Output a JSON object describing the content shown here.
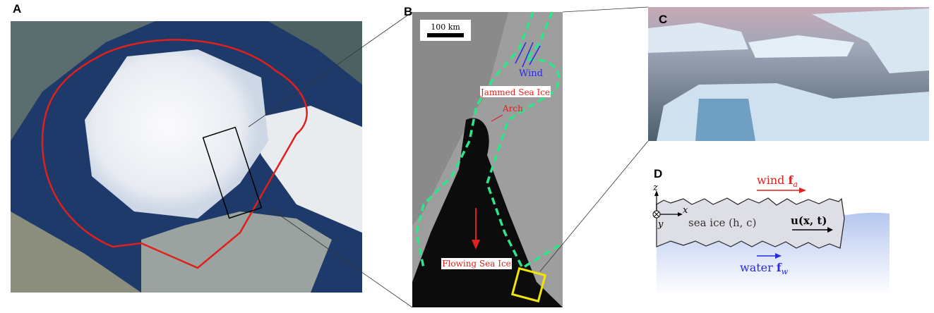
{
  "panels": {
    "a": {
      "label": "A"
    },
    "b": {
      "label": "B",
      "scale_bar": "100 km",
      "wind": "Wind",
      "jammed": "Jammed Sea Ice",
      "arch": "Arch",
      "flowing": "Flowing Sea Ice"
    },
    "c": {
      "label": "C"
    },
    "d": {
      "label": "D",
      "wind": "wind ",
      "wind_sym": "f",
      "wind_sub": "a",
      "water": "water ",
      "water_sym": "f",
      "water_sub": "w",
      "ice": "sea ice (h, c)",
      "velocity": "u(x, t)",
      "axis_z": "z",
      "axis_x": "x",
      "axis_y": "y"
    }
  },
  "colors": {
    "boundary": "#e0201c",
    "dashed": "#2ee58a",
    "wind": "#2a2ae0",
    "box": "#f2e600",
    "water": "#b8c9ef"
  }
}
